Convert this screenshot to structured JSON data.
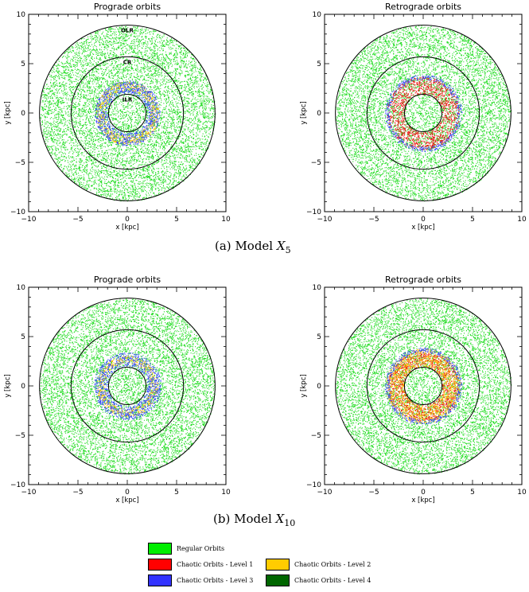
{
  "chart_data": [
    {
      "type": "scatter",
      "title": "Prograde orbits",
      "xlabel": "x [kpc]",
      "ylabel": "y [kpc]",
      "xlim": [
        -10,
        10
      ],
      "ylim": [
        -10,
        10
      ],
      "xticks": [
        -10,
        -5,
        0,
        5,
        10
      ],
      "yticks": [
        -10,
        -5,
        0,
        5,
        10
      ],
      "resonance_circles": [
        {
          "label": "ILR",
          "radius": 1.9
        },
        {
          "label": "CR",
          "radius": 5.7
        },
        {
          "label": "OLR",
          "radius": 8.9
        }
      ],
      "distribution": [
        {
          "series": "Regular Orbits",
          "r_min": 0,
          "r_max": 8.9
        },
        {
          "series": "Chaotic Orbits - Level 2",
          "r_min": 2.3,
          "r_max": 3.2
        },
        {
          "series": "Chaotic Orbits - Level 3",
          "r_min": 2.0,
          "r_max": 3.3
        }
      ],
      "grid": false
    },
    {
      "type": "scatter",
      "title": "Retrograde orbits",
      "xlabel": "x [kpc]",
      "ylabel": "y [kpc]",
      "xlim": [
        -10,
        10
      ],
      "ylim": [
        -10,
        10
      ],
      "xticks": [
        -10,
        -5,
        0,
        5,
        10
      ],
      "yticks": [
        -10,
        -5,
        0,
        5,
        10
      ],
      "resonance_circles": [
        {
          "radius": 1.9
        },
        {
          "radius": 5.7
        },
        {
          "radius": 8.9
        }
      ],
      "distribution": [
        {
          "series": "Regular Orbits",
          "r_min": 0,
          "r_max": 8.9
        },
        {
          "series": "Chaotic Orbits - Level 1",
          "r_min": 1.9,
          "r_max": 3.7
        },
        {
          "series": "Chaotic Orbits - Level 3",
          "r_min": 3.4,
          "r_max": 3.9
        }
      ],
      "grid": false
    },
    {
      "type": "scatter",
      "title": "Prograde orbits",
      "xlabel": "x [kpc]",
      "ylabel": "y [kpc]",
      "xlim": [
        -10,
        10
      ],
      "ylim": [
        -10,
        10
      ],
      "xticks": [
        -10,
        -5,
        0,
        5,
        10
      ],
      "yticks": [
        -10,
        -5,
        0,
        5,
        10
      ],
      "resonance_circles": [
        {
          "radius": 1.9
        },
        {
          "radius": 5.7
        },
        {
          "radius": 8.9
        }
      ],
      "distribution": [
        {
          "series": "Regular Orbits",
          "r_min": 0,
          "r_max": 8.9
        },
        {
          "series": "Chaotic Orbits - Level 2",
          "r_min": 2.3,
          "r_max": 3.1
        },
        {
          "series": "Chaotic Orbits - Level 3",
          "r_min": 2.0,
          "r_max": 3.4
        }
      ],
      "grid": false
    },
    {
      "type": "scatter",
      "title": "Retrograde orbits",
      "xlabel": "x [kpc]",
      "ylabel": "y [kpc]",
      "xlim": [
        -10,
        10
      ],
      "ylim": [
        -10,
        10
      ],
      "xticks": [
        -10,
        -5,
        0,
        5,
        10
      ],
      "yticks": [
        -10,
        -5,
        0,
        5,
        10
      ],
      "resonance_circles": [
        {
          "radius": 1.9
        },
        {
          "radius": 5.7
        },
        {
          "radius": 8.9
        }
      ],
      "distribution": [
        {
          "series": "Regular Orbits",
          "r_min": 0,
          "r_max": 8.9
        },
        {
          "series": "Chaotic Orbits - Level 1",
          "r_min": 1.9,
          "r_max": 3.6
        },
        {
          "series": "Chaotic Orbits - Level 2",
          "r_min": 2.0,
          "r_max": 3.8
        },
        {
          "series": "Chaotic Orbits - Level 3",
          "r_min": 3.4,
          "r_max": 3.9
        }
      ],
      "grid": false
    }
  ],
  "captions": [
    {
      "label": "(a)",
      "prefix": "Model",
      "symbol": "X",
      "subscript": "5"
    },
    {
      "label": "(b)",
      "prefix": "Model",
      "symbol": "X",
      "subscript": "10"
    }
  ],
  "legend": {
    "items": [
      {
        "label": "Regular Orbits",
        "color": "#00ee00"
      },
      {
        "label": "Chaotic Orbits - Level 1",
        "color": "#ff0000"
      },
      {
        "label": "Chaotic Orbits - Level 2",
        "color": "#ffcc00"
      },
      {
        "label": "Chaotic Orbits - Level 3",
        "color": "#3333ff"
      },
      {
        "label": "Chaotic Orbits - Level 4",
        "color": "#006600"
      }
    ]
  },
  "colors": {
    "Regular Orbits": "#22dd22",
    "Chaotic Orbits - Level 1": "#ee1111",
    "Chaotic Orbits - Level 2": "#ffbb00",
    "Chaotic Orbits - Level 3": "#3344ff",
    "Chaotic Orbits - Level 4": "#006600"
  }
}
